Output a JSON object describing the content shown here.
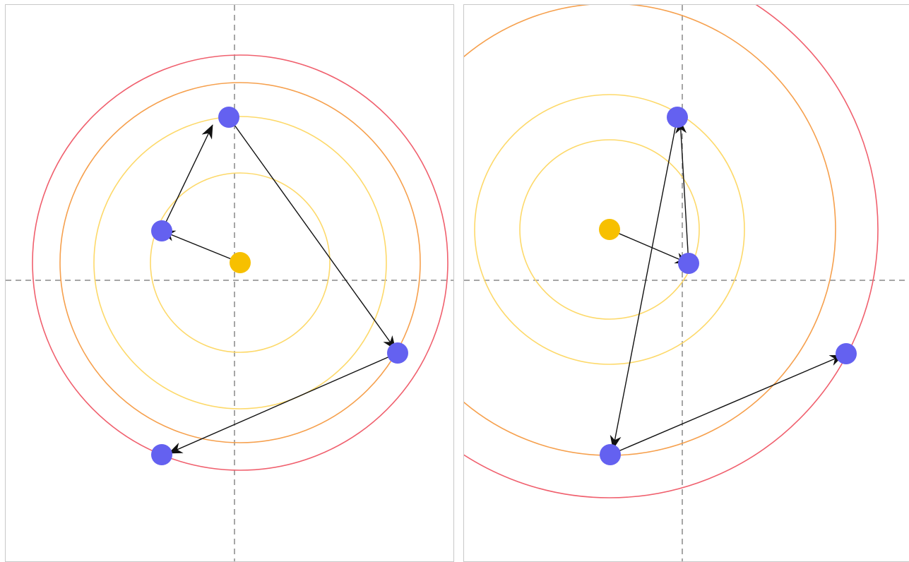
{
  "colors": {
    "background": "#ffffff",
    "panel_border": "#c8c8c8",
    "axis": "#888888",
    "ring_inner": "#fdd96a",
    "ring_middle": "#f6a04d",
    "ring_outer": "#f0606e",
    "center_point": "#f7c000",
    "node": "#6461f0",
    "arrow": "#111111"
  },
  "panels": [
    {
      "name": "left",
      "rings": [
        "ring_inner",
        "ring_inner",
        "ring_middle",
        "ring_outer"
      ],
      "arrows": [
        [
          "center",
          "node-a"
        ],
        [
          "node-a",
          "node-b"
        ],
        [
          "node-b",
          "node-c"
        ],
        [
          "node-c",
          "node-d"
        ]
      ]
    },
    {
      "name": "right",
      "rings": [
        "ring_inner",
        "ring_inner",
        "ring_middle",
        "ring_outer"
      ],
      "arrows": [
        [
          "center",
          "node-a"
        ],
        [
          "node-a",
          "node-b"
        ],
        [
          "node-b",
          "node-c"
        ],
        [
          "node-c",
          "node-d"
        ]
      ]
    }
  ]
}
